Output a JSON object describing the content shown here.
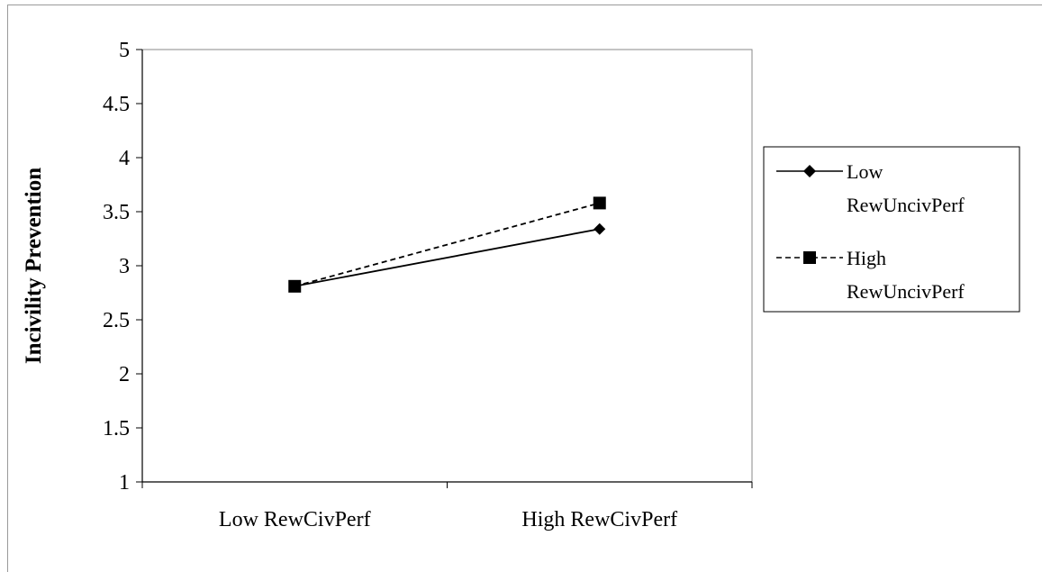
{
  "chart_data": {
    "type": "line",
    "title": "",
    "xlabel": "",
    "ylabel": "Incivility Prevention",
    "categories": [
      "Low RewCivPerf",
      "High RewCivPerf"
    ],
    "ylim": [
      1,
      5
    ],
    "yticks": [
      "1",
      "1.5",
      "2",
      "2.5",
      "3",
      "3.5",
      "4",
      "4.5",
      "5"
    ],
    "grid": false,
    "legend_position": "right",
    "series": [
      {
        "name": "Low RewUncivPerf",
        "legend_lines": [
          "Low",
          "RewUncivPerf"
        ],
        "values": [
          2.81,
          3.34
        ],
        "marker": "diamond",
        "line_style": "solid",
        "color": "#000000"
      },
      {
        "name": "High RewUncivPerf",
        "legend_lines": [
          "High",
          "RewUncivPerf"
        ],
        "values": [
          2.81,
          3.58
        ],
        "marker": "square",
        "line_style": "dashed",
        "color": "#000000"
      }
    ]
  }
}
